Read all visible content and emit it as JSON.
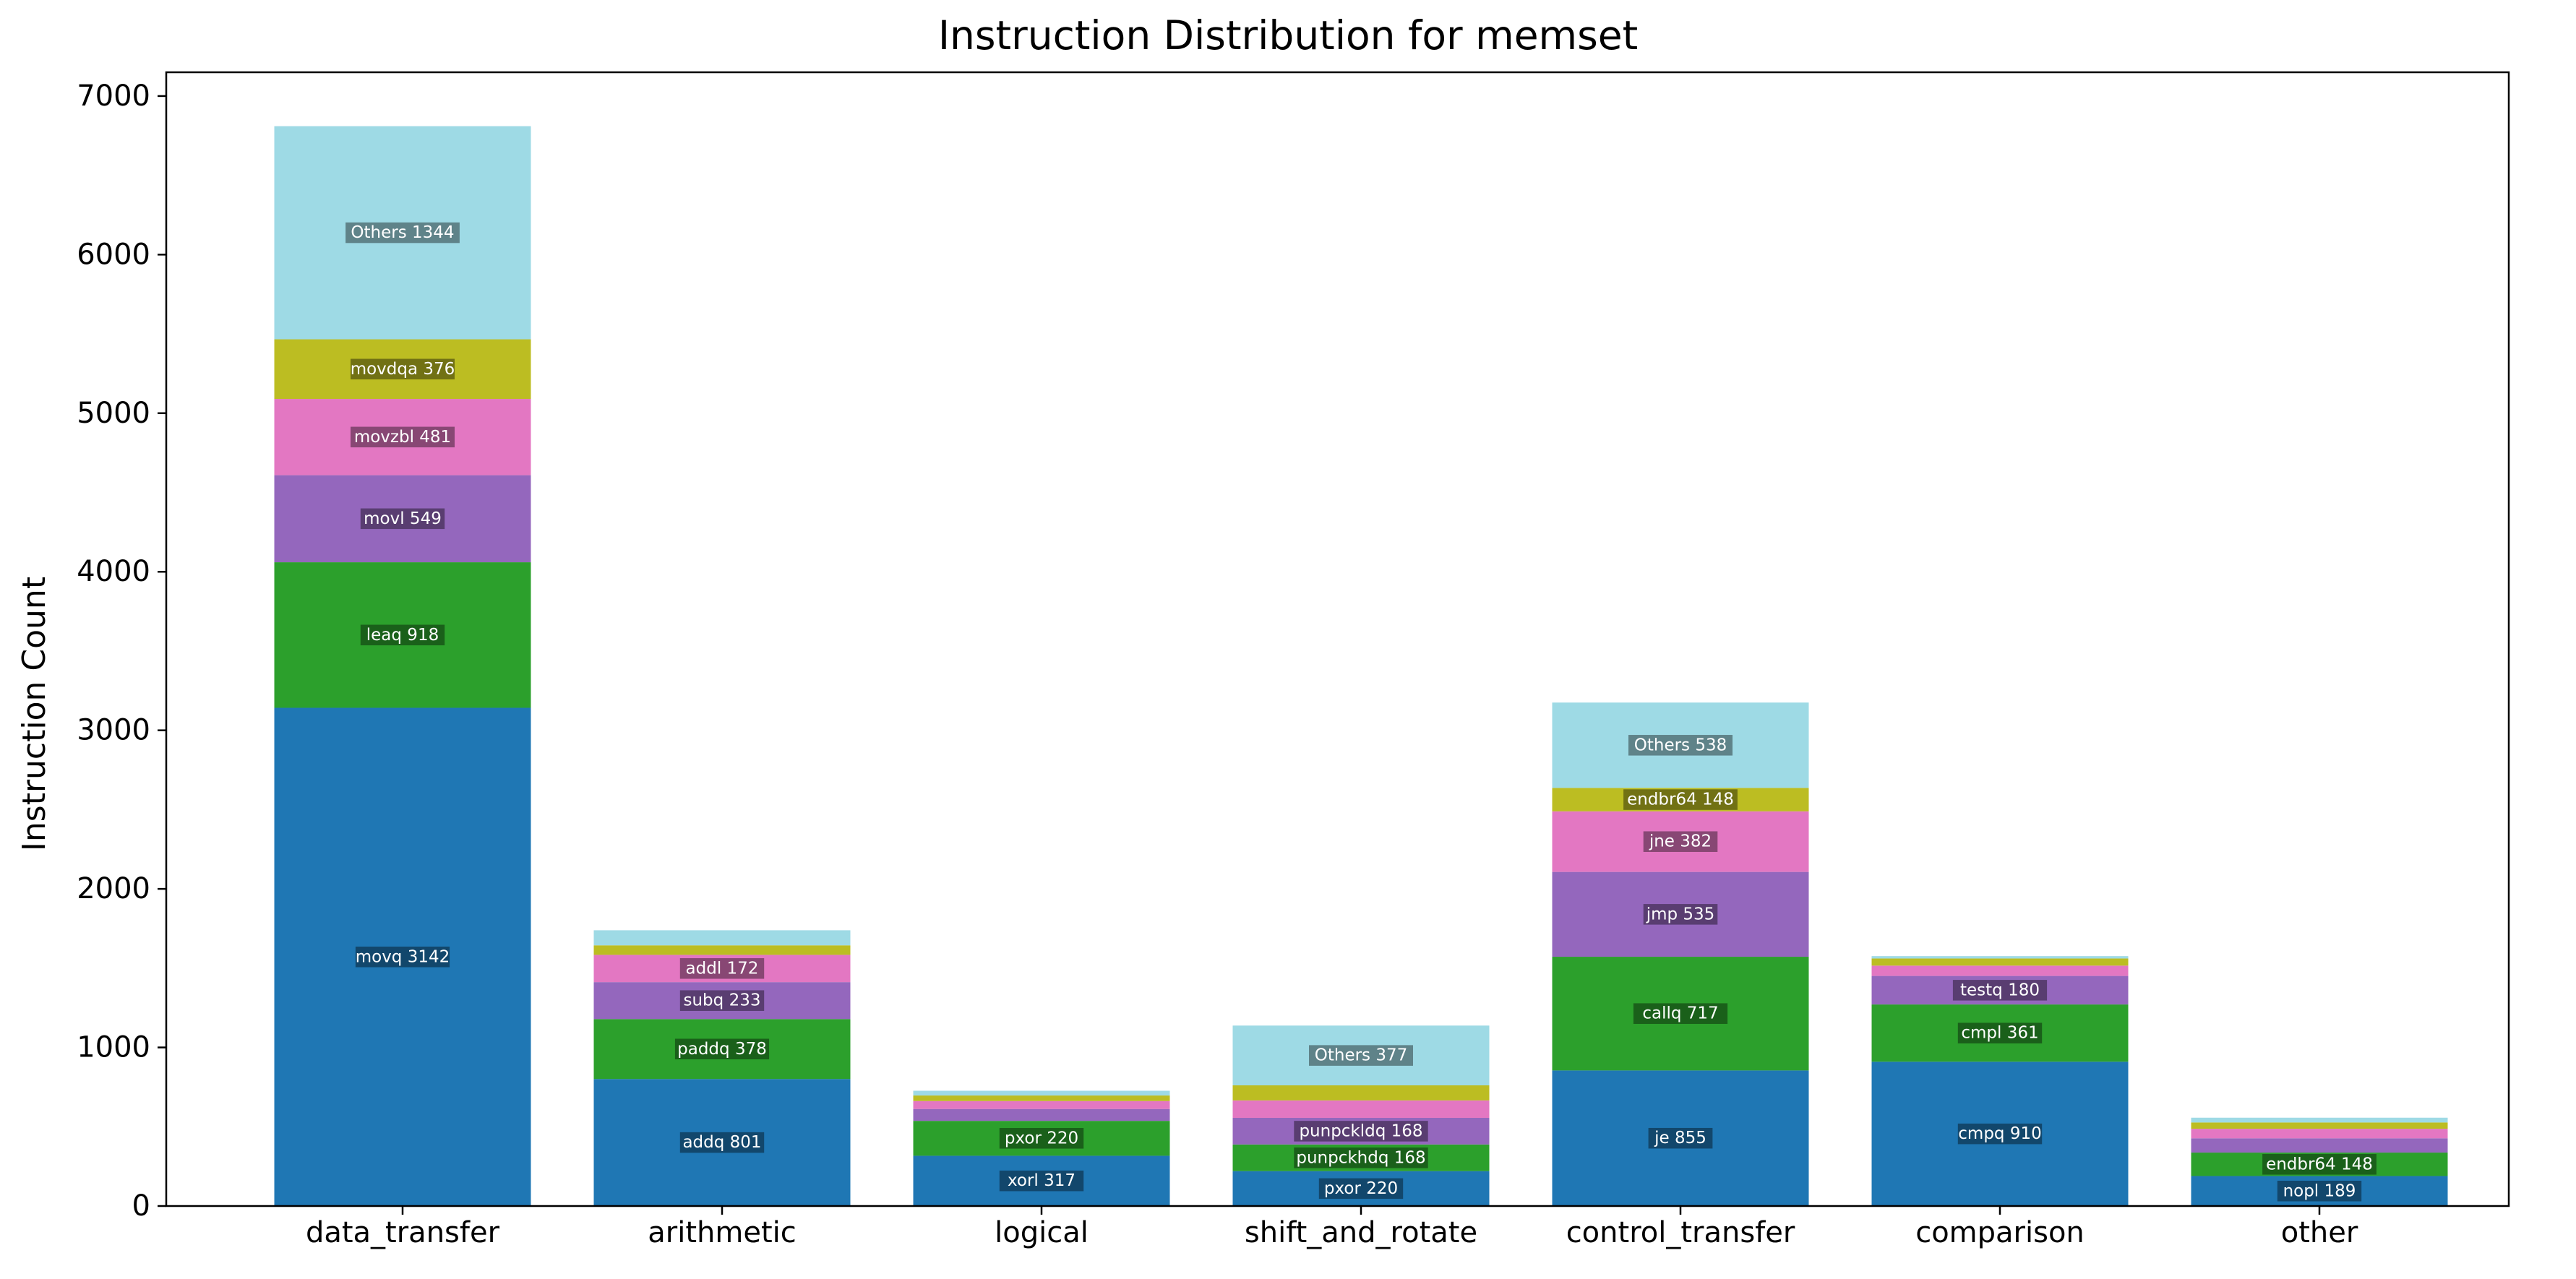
{
  "chart_data": {
    "type": "bar",
    "stacked": true,
    "title": "Instruction Distribution for memset",
    "xlabel": "",
    "ylabel": "Instruction Count",
    "ylim": [
      0,
      7150
    ],
    "yticks": [
      0,
      1000,
      2000,
      3000,
      4000,
      5000,
      6000,
      7000
    ],
    "grid": false,
    "categories": [
      "data_transfer",
      "arithmetic",
      "logical",
      "shift_and_rotate",
      "control_transfer",
      "comparison",
      "other"
    ],
    "segment_colors": [
      "#1f77b4",
      "#2ca02c",
      "#9467bd",
      "#e377c2",
      "#bcbd22",
      "#9edae5"
    ],
    "stacks": [
      [
        {
          "label": "movq 3142",
          "value": 3142
        },
        {
          "label": "leaq 918",
          "value": 918
        },
        {
          "label": "movl 549",
          "value": 549
        },
        {
          "label": "movzbl 481",
          "value": 481
        },
        {
          "label": "movdqa 376",
          "value": 376
        },
        {
          "label": "Others 1344",
          "value": 1344
        }
      ],
      [
        {
          "label": "addq 801",
          "value": 801
        },
        {
          "label": "paddq 378",
          "value": 378
        },
        {
          "label": "subq 233",
          "value": 233
        },
        {
          "label": "addl 172",
          "value": 172
        },
        {
          "label": "",
          "value": 60
        },
        {
          "label": "",
          "value": 95
        }
      ],
      [
        {
          "label": "xorl 317",
          "value": 317
        },
        {
          "label": "pxor 220",
          "value": 220
        },
        {
          "label": "",
          "value": 75
        },
        {
          "label": "",
          "value": 50
        },
        {
          "label": "",
          "value": 35
        },
        {
          "label": "",
          "value": 30
        }
      ],
      [
        {
          "label": "pxor 220",
          "value": 220
        },
        {
          "label": "punpckhdq 168",
          "value": 168
        },
        {
          "label": "punpckldq 168",
          "value": 168
        },
        {
          "label": "",
          "value": 110
        },
        {
          "label": "",
          "value": 95
        },
        {
          "label": "Others 377",
          "value": 377
        }
      ],
      [
        {
          "label": "je 855",
          "value": 855
        },
        {
          "label": "callq 717",
          "value": 717
        },
        {
          "label": "jmp 535",
          "value": 535
        },
        {
          "label": "jne 382",
          "value": 382
        },
        {
          "label": "endbr64 148",
          "value": 148
        },
        {
          "label": "Others 538",
          "value": 538
        }
      ],
      [
        {
          "label": "cmpq 910",
          "value": 910
        },
        {
          "label": "cmpl 361",
          "value": 361
        },
        {
          "label": "testq 180",
          "value": 180
        },
        {
          "label": "",
          "value": 65
        },
        {
          "label": "",
          "value": 45
        },
        {
          "label": "",
          "value": 15
        }
      ],
      [
        {
          "label": "nopl 189",
          "value": 189
        },
        {
          "label": "endbr64 148",
          "value": 148
        },
        {
          "label": "",
          "value": 90
        },
        {
          "label": "",
          "value": 60
        },
        {
          "label": "",
          "value": 40
        },
        {
          "label": "",
          "value": 30
        }
      ]
    ]
  }
}
